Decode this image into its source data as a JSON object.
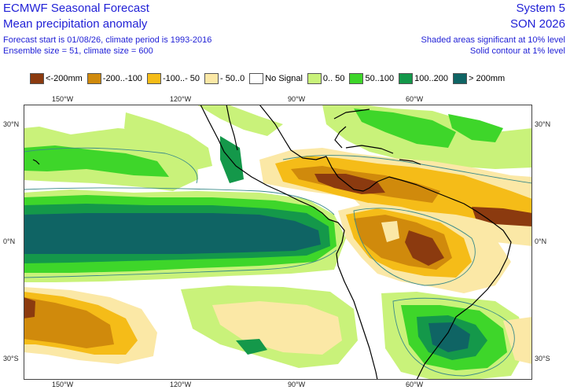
{
  "header": {
    "title": "ECMWF Seasonal Forecast",
    "subtitle": "Mean precipitation anomaly",
    "line3": "Forecast start is 01/08/26, climate period is 1993-2016",
    "line4": "Ensemble size = 51, climate size = 600",
    "system": "System 5",
    "season": "SON 2026",
    "note1": "Shaded areas significant at 10% level",
    "note2": "Solid contour at 1% level"
  },
  "legend": [
    {
      "label": "<-200mm",
      "color": "#8b3a0f"
    },
    {
      "label": "-200..-100",
      "color": "#d08a0c"
    },
    {
      "label": "-100..- 50",
      "color": "#f5bc18"
    },
    {
      "label": "- 50..0",
      "color": "#fbe8a6"
    },
    {
      "label": "No Signal",
      "color": "#ffffff"
    },
    {
      "label": "0.. 50",
      "color": "#c9f27a"
    },
    {
      "label": "50..100",
      "color": "#3ed62a"
    },
    {
      "label": "100..200",
      "color": "#14984a"
    },
    {
      "label": "> 200mm",
      "color": "#0f6464"
    }
  ],
  "axes": {
    "lon_top": [
      "150°W",
      "120°W",
      "90°W",
      "60°W"
    ],
    "lon_bottom": [
      "150°W",
      "120°W",
      "90°W",
      "60°W"
    ],
    "lat_left": [
      "30°N",
      "0°N",
      "30°S"
    ],
    "lat_right": [
      "30°N",
      "0°N",
      "30°S"
    ]
  },
  "colors": {
    "coast": "#000000",
    "contour": "#3a8a8a",
    "text": "#1f1fd6"
  }
}
